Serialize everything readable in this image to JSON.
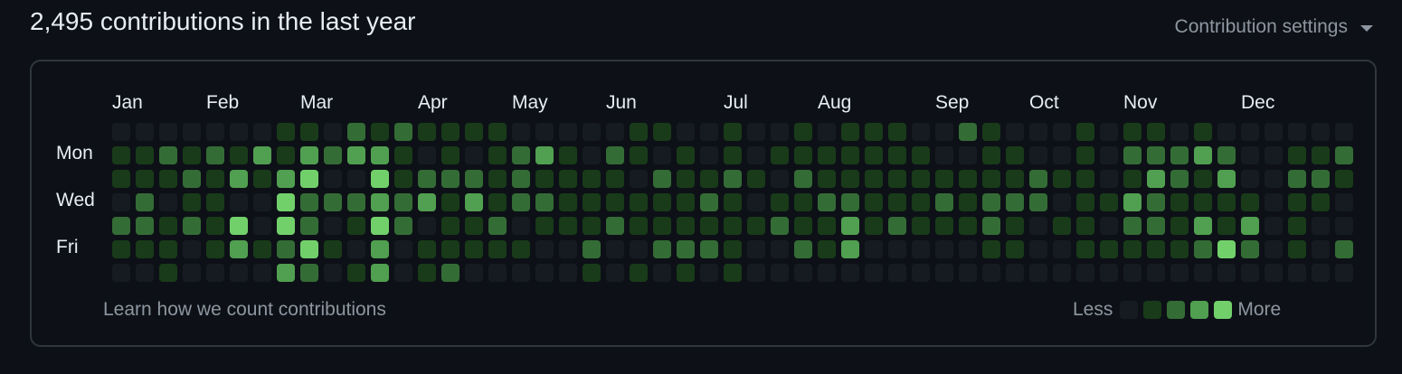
{
  "header": {
    "title": "2,495 contributions in the last year",
    "settings_label": "Contribution settings",
    "settings_icon": "caret-down-icon"
  },
  "graph": {
    "months": [
      {
        "label": "Jan",
        "col": 0
      },
      {
        "label": "Feb",
        "col": 4
      },
      {
        "label": "Mar",
        "col": 8
      },
      {
        "label": "Apr",
        "col": 13
      },
      {
        "label": "May",
        "col": 17
      },
      {
        "label": "Jun",
        "col": 21
      },
      {
        "label": "Jul",
        "col": 26
      },
      {
        "label": "Aug",
        "col": 30
      },
      {
        "label": "Sep",
        "col": 35
      },
      {
        "label": "Oct",
        "col": 39
      },
      {
        "label": "Nov",
        "col": 43
      },
      {
        "label": "Dec",
        "col": 48
      }
    ],
    "days": [
      {
        "label": "Mon",
        "row": 1
      },
      {
        "label": "Wed",
        "row": 3
      },
      {
        "label": "Fri",
        "row": 5
      }
    ],
    "colors": [
      "#161b22",
      "#193b19",
      "#346c35",
      "#519f50",
      "#72d06b"
    ],
    "weeks": [
      [
        0,
        1,
        1,
        0,
        2,
        1,
        0
      ],
      [
        0,
        1,
        1,
        2,
        2,
        1,
        0
      ],
      [
        0,
        2,
        1,
        0,
        1,
        1,
        1
      ],
      [
        0,
        1,
        2,
        1,
        2,
        0,
        0
      ],
      [
        0,
        2,
        1,
        1,
        1,
        1,
        0
      ],
      [
        0,
        1,
        3,
        0,
        4,
        3,
        0
      ],
      [
        0,
        3,
        1,
        0,
        0,
        1,
        0
      ],
      [
        1,
        1,
        3,
        4,
        4,
        2,
        3
      ],
      [
        1,
        3,
        4,
        2,
        2,
        4,
        2
      ],
      [
        0,
        2,
        0,
        2,
        0,
        1,
        0
      ],
      [
        2,
        3,
        0,
        2,
        1,
        0,
        1
      ],
      [
        1,
        3,
        4,
        3,
        4,
        3,
        3
      ],
      [
        2,
        1,
        1,
        2,
        2,
        0,
        0
      ],
      [
        1,
        0,
        2,
        3,
        0,
        1,
        1
      ],
      [
        1,
        1,
        2,
        1,
        1,
        1,
        2
      ],
      [
        1,
        0,
        2,
        3,
        1,
        1,
        0
      ],
      [
        1,
        1,
        1,
        1,
        2,
        1,
        0
      ],
      [
        0,
        2,
        2,
        2,
        0,
        1,
        0
      ],
      [
        0,
        3,
        1,
        2,
        1,
        0,
        0
      ],
      [
        0,
        1,
        1,
        1,
        1,
        0,
        0
      ],
      [
        0,
        0,
        1,
        1,
        1,
        2,
        1
      ],
      [
        0,
        2,
        1,
        1,
        2,
        0,
        0
      ],
      [
        1,
        1,
        0,
        1,
        1,
        0,
        1
      ],
      [
        1,
        0,
        2,
        1,
        1,
        2,
        0
      ],
      [
        0,
        1,
        1,
        1,
        1,
        2,
        1
      ],
      [
        0,
        0,
        1,
        2,
        1,
        2,
        0
      ],
      [
        1,
        1,
        2,
        1,
        1,
        1,
        1
      ],
      [
        0,
        0,
        1,
        0,
        1,
        0,
        0
      ],
      [
        0,
        1,
        0,
        1,
        2,
        0,
        0
      ],
      [
        1,
        1,
        2,
        1,
        1,
        2,
        0
      ],
      [
        0,
        1,
        1,
        2,
        1,
        1,
        0
      ],
      [
        1,
        1,
        1,
        2,
        3,
        3,
        0
      ],
      [
        1,
        1,
        1,
        1,
        1,
        0,
        0
      ],
      [
        1,
        1,
        1,
        1,
        2,
        0,
        0
      ],
      [
        0,
        1,
        1,
        1,
        1,
        0,
        0
      ],
      [
        0,
        0,
        1,
        2,
        1,
        0,
        0
      ],
      [
        2,
        0,
        1,
        1,
        1,
        0,
        0
      ],
      [
        1,
        1,
        1,
        2,
        2,
        1,
        0
      ],
      [
        0,
        1,
        1,
        2,
        1,
        1,
        0
      ],
      [
        0,
        0,
        2,
        2,
        0,
        0,
        0
      ],
      [
        0,
        0,
        1,
        0,
        1,
        0,
        0
      ],
      [
        1,
        1,
        1,
        1,
        1,
        1,
        0
      ],
      [
        0,
        0,
        0,
        1,
        0,
        1,
        0
      ],
      [
        1,
        2,
        1,
        3,
        2,
        1,
        0
      ],
      [
        1,
        2,
        3,
        2,
        2,
        1,
        0
      ],
      [
        0,
        2,
        2,
        1,
        1,
        1,
        0
      ],
      [
        1,
        3,
        1,
        1,
        3,
        2,
        0
      ],
      [
        0,
        2,
        3,
        1,
        1,
        4,
        0
      ],
      [
        0,
        0,
        0,
        1,
        3,
        2,
        0
      ],
      [
        0,
        0,
        0,
        0,
        0,
        0,
        0
      ],
      [
        0,
        1,
        2,
        1,
        1,
        1,
        0
      ],
      [
        0,
        1,
        2,
        1,
        0,
        0,
        0
      ],
      [
        0,
        2,
        1,
        0,
        0,
        2,
        0
      ]
    ]
  },
  "footer": {
    "learn_link": "Learn how we count contributions",
    "legend_less": "Less",
    "legend_more": "More",
    "legend_levels": [
      0,
      1,
      2,
      3,
      4
    ]
  }
}
